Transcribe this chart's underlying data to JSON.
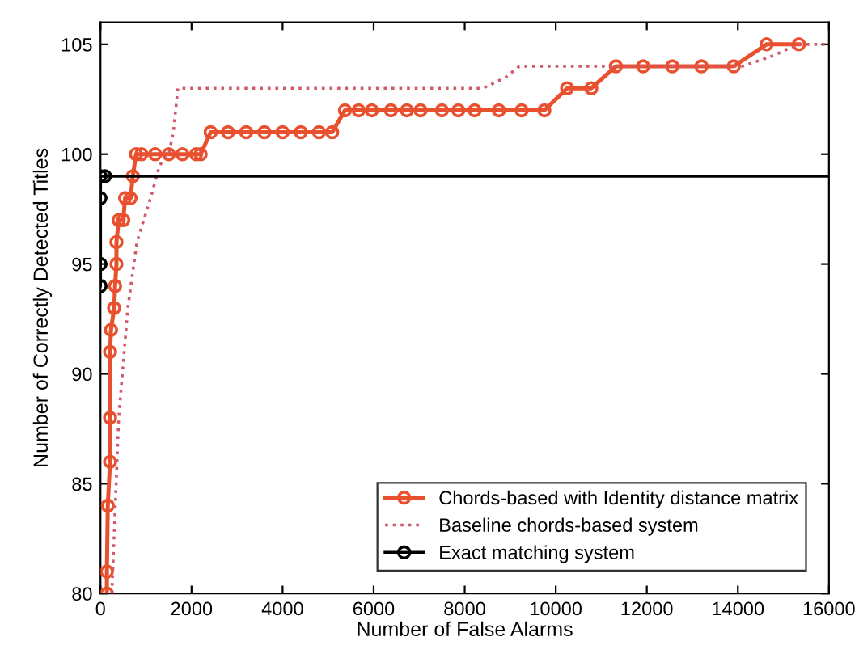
{
  "chart_data": {
    "type": "line",
    "xlabel": "Number of False Alarms",
    "ylabel": "Number of Correctly Detected Titles",
    "xlim": [
      0,
      16000
    ],
    "ylim": [
      80,
      106
    ],
    "xticks": [
      0,
      2000,
      4000,
      6000,
      8000,
      10000,
      12000,
      14000,
      16000
    ],
    "yticks": [
      80,
      85,
      90,
      95,
      100,
      105
    ],
    "grid": false,
    "legend": "bottom right",
    "series": [
      {
        "name": "Chords-based with Identity distance matrix",
        "color": "#e8502e",
        "line_style": "solid",
        "marker": "circle",
        "x": [
          140,
          140,
          160,
          210,
          210,
          210,
          230,
          300,
          320,
          350,
          350,
          400,
          500,
          540,
          660,
          710,
          780,
          900,
          1200,
          1500,
          1800,
          2100,
          2200,
          2420,
          2800,
          3200,
          3600,
          4000,
          4400,
          4800,
          5090,
          5370,
          5670,
          5960,
          6380,
          6730,
          7030,
          7500,
          7860,
          8220,
          8750,
          9250,
          9750,
          10250,
          10780,
          11320,
          11920,
          12560,
          13200,
          13910,
          14630,
          15340
        ],
        "values": [
          80,
          81,
          84,
          86,
          88,
          91,
          92,
          93,
          94,
          95,
          96,
          97,
          97,
          98,
          98,
          99,
          100,
          100,
          100,
          100,
          100,
          100,
          100,
          101,
          101,
          101,
          101,
          101,
          101,
          101,
          101,
          102,
          102,
          102,
          102,
          102,
          102,
          102,
          102,
          102,
          102,
          102,
          102,
          103,
          103,
          104,
          104,
          104,
          104,
          104,
          105,
          105
        ]
      },
      {
        "name": "Baseline chords-based system",
        "color": "#d05a6a",
        "line_style": "dotted",
        "marker": "none",
        "x": [
          250,
          400,
          600,
          800,
          1100,
          1300,
          1500,
          1600,
          1700,
          8400,
          8900,
          9200,
          14100,
          14800,
          15300,
          16000
        ],
        "values": [
          80,
          88,
          93,
          96,
          98,
          99.5,
          100,
          101,
          103,
          103,
          103.5,
          104,
          104,
          104.5,
          105,
          105
        ]
      },
      {
        "name": "Exact matching system",
        "color": "#000000",
        "line_style": "solid",
        "marker": "circle",
        "x": [
          0,
          0,
          0,
          0,
          100
        ],
        "values": [
          94,
          95,
          98,
          99,
          99
        ]
      },
      {
        "color": "#000000",
        "line_style": "solid",
        "marker": "none",
        "x": [
          100,
          16000
        ],
        "values": [
          99,
          99
        ]
      }
    ]
  }
}
